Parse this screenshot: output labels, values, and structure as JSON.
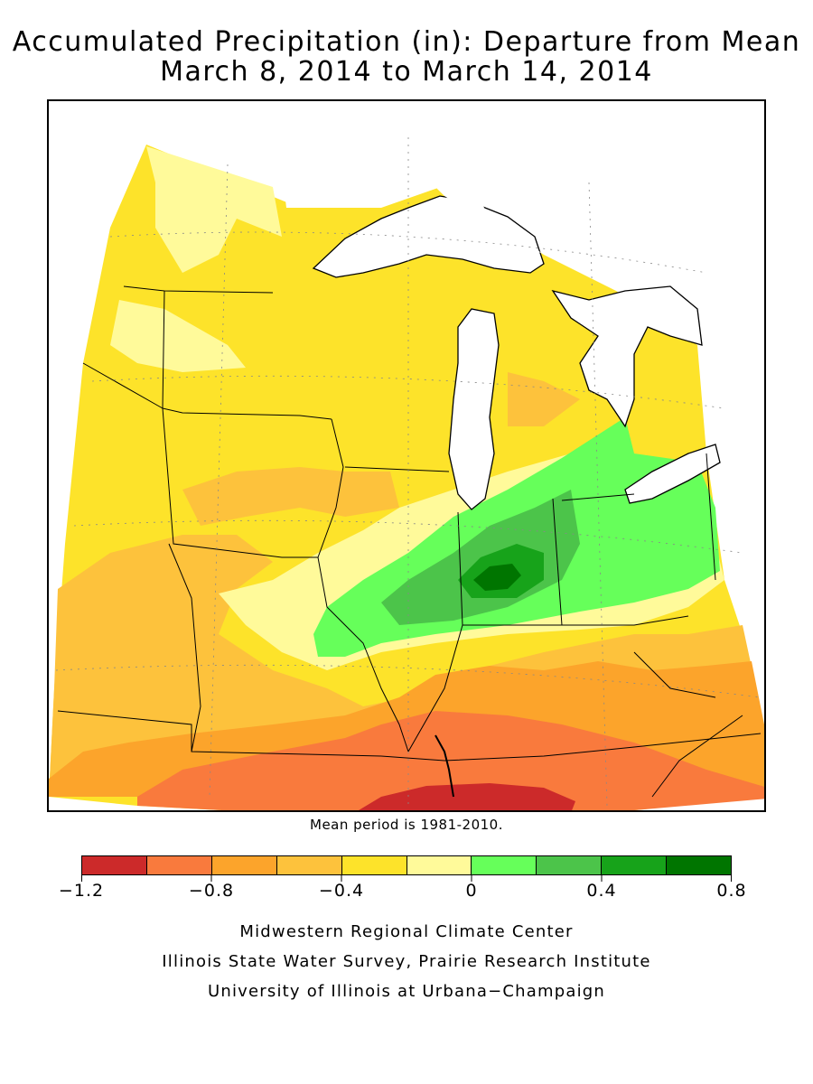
{
  "title": {
    "line1": "Accumulated Precipitation (in): Departure from Mean",
    "line2": "March 8, 2014 to March 14, 2014"
  },
  "mean_note": "Mean period is 1981-2010.",
  "legend": {
    "unit": "in",
    "bins": [
      {
        "min": -1.2,
        "max": -1.0,
        "color": "#cc2a2a"
      },
      {
        "min": -1.0,
        "max": -0.8,
        "color": "#f97a3d"
      },
      {
        "min": -0.8,
        "max": -0.6,
        "color": "#fca42b"
      },
      {
        "min": -0.6,
        "max": -0.4,
        "color": "#fdc23c"
      },
      {
        "min": -0.4,
        "max": -0.2,
        "color": "#fde32a"
      },
      {
        "min": -0.2,
        "max": 0.0,
        "color": "#fffa9a"
      },
      {
        "min": 0.0,
        "max": 0.2,
        "color": "#66ff5a"
      },
      {
        "min": 0.2,
        "max": 0.4,
        "color": "#4cc44a"
      },
      {
        "min": 0.4,
        "max": 0.6,
        "color": "#17a31a"
      },
      {
        "min": 0.6,
        "max": 0.8,
        "color": "#007500"
      }
    ],
    "labels": [
      "−1.2",
      "−0.8",
      "−0.4",
      "0",
      "0.4",
      "0.8"
    ]
  },
  "credits": {
    "line1": "Midwestern Regional Climate Center",
    "line2": "Illinois State Water Survey, Prairie Research Institute",
    "line3": "University of Illinois at Urbana−Champaign"
  },
  "map": {
    "region": "Upper Midwest / Great Lakes",
    "water_color": "#ffffff",
    "border_color": "#000000",
    "field_description_bins": {
      "north_and_west": [
        -0.4,
        -0.2
      ],
      "central_band": [
        0.0,
        0.2
      ],
      "central_indiana_core": [
        0.6,
        0.8
      ],
      "south": [
        -1.2,
        -0.8
      ]
    }
  }
}
